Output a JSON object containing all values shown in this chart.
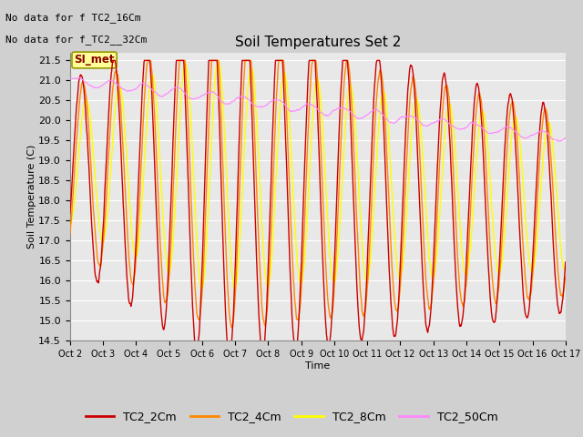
{
  "title": "Soil Temperatures Set 2",
  "xlabel": "Time",
  "ylabel": "Soil Temperature (C)",
  "ylim": [
    14.5,
    21.7
  ],
  "xlim": [
    0,
    360
  ],
  "annotation_text1": "No data for f TC2_16Cm",
  "annotation_text2": "No data for f̲TC2′32Cm",
  "si_met_label": "SI_met",
  "legend_entries": [
    "TC2_2Cm",
    "TC2_4Cm",
    "TC2_8Cm",
    "TC2_50Cm"
  ],
  "colors": {
    "TC2_2Cm": "#cc0000",
    "TC2_4Cm": "#ff8800",
    "TC2_8Cm": "#ffff00",
    "TC2_50Cm": "#ff88ff"
  },
  "xtick_labels": [
    "Oct 2",
    "Oct 3",
    "Oct 4",
    "Oct 5",
    "Oct 6",
    "Oct 7",
    "Oct 8",
    "Oct 9",
    "Oct 10",
    "Oct 11",
    "Oct 12",
    "Oct 13",
    "Oct 14",
    "Oct 15",
    "Oct 16",
    "Oct 17"
  ],
  "ytick_values": [
    14.5,
    15.0,
    15.5,
    16.0,
    16.5,
    17.0,
    17.5,
    18.0,
    18.5,
    19.0,
    19.5,
    20.0,
    20.5,
    21.0,
    21.5
  ]
}
